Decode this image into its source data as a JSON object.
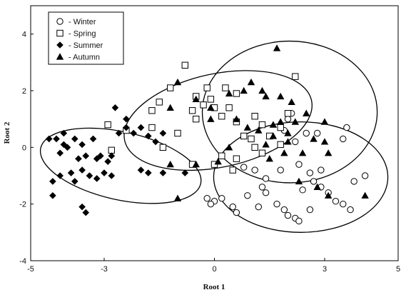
{
  "chart_data": {
    "type": "scatter",
    "xlabel": "Root 1",
    "ylabel": "Root 2",
    "xlim": [
      -5,
      5
    ],
    "ylim": [
      -4,
      5
    ],
    "xticks": [
      "-5",
      "-3",
      "0",
      "3",
      "5"
    ],
    "xtick_values": [
      -5,
      -3,
      0,
      3,
      5
    ],
    "yticks": [
      "4",
      "2",
      "0",
      "-2",
      "-4"
    ],
    "ytick_values": [
      4,
      2,
      0,
      -2,
      -4
    ],
    "grid": false,
    "legend_position": "top-left",
    "legend": [
      {
        "label": "- Winter",
        "marker": "circle"
      },
      {
        "label": "- Spring",
        "marker": "square"
      },
      {
        "label": "- Summer",
        "marker": "diamond"
      },
      {
        "label": "- Autumn",
        "marker": "triangle"
      }
    ],
    "series": [
      {
        "marker": "circle",
        "points": [
          [
            2.1,
            1.2
          ],
          [
            2.0,
            1.0
          ],
          [
            2.5,
            0.5
          ],
          [
            2.2,
            0.2
          ],
          [
            2.8,
            0.5
          ],
          [
            3.6,
            0.7
          ],
          [
            3.5,
            0.3
          ],
          [
            1.9,
            0.6
          ],
          [
            2.3,
            -0.6
          ],
          [
            0.8,
            -0.7
          ],
          [
            1.1,
            -0.8
          ],
          [
            1.4,
            -1.1
          ],
          [
            1.8,
            -0.8
          ],
          [
            2.6,
            -0.9
          ],
          [
            2.9,
            -0.8
          ],
          [
            2.7,
            -1.2
          ],
          [
            2.9,
            -1.4
          ],
          [
            3.1,
            -1.6
          ],
          [
            3.8,
            -1.2
          ],
          [
            4.1,
            -1.0
          ],
          [
            3.3,
            -1.9
          ],
          [
            3.5,
            -2.0
          ],
          [
            3.7,
            -2.2
          ],
          [
            0.2,
            -1.8
          ],
          [
            0.0,
            -1.9
          ],
          [
            0.5,
            -2.1
          ],
          [
            0.6,
            -2.3
          ],
          [
            1.4,
            -1.6
          ],
          [
            1.7,
            -2.0
          ],
          [
            1.9,
            -2.2
          ],
          [
            2.0,
            -2.4
          ],
          [
            2.2,
            -2.5
          ],
          [
            2.3,
            -2.6
          ],
          [
            1.3,
            -1.4
          ],
          [
            0.9,
            -1.7
          ],
          [
            2.4,
            -1.5
          ],
          [
            1.2,
            -2.1
          ],
          [
            -0.2,
            -1.8
          ],
          [
            -0.1,
            -2.0
          ],
          [
            2.6,
            -2.2
          ]
        ]
      },
      {
        "marker": "square",
        "points": [
          [
            -0.8,
            2.9
          ],
          [
            -1.2,
            2.1
          ],
          [
            -0.5,
            1.8
          ],
          [
            -0.3,
            1.5
          ],
          [
            0.0,
            1.4
          ],
          [
            0.3,
            2.1
          ],
          [
            0.6,
            1.9
          ],
          [
            -1.5,
            1.6
          ],
          [
            -1.7,
            1.3
          ],
          [
            -2.9,
            0.8
          ],
          [
            -1.7,
            0.7
          ],
          [
            -0.1,
            1.7
          ],
          [
            0.4,
            1.4
          ],
          [
            0.2,
            1.1
          ],
          [
            0.6,
            0.9
          ],
          [
            1.1,
            1.1
          ],
          [
            1.3,
            0.8
          ],
          [
            2.0,
            1.2
          ],
          [
            2.2,
            2.5
          ],
          [
            1.8,
            0.7
          ],
          [
            1.5,
            0.4
          ],
          [
            1.0,
            0.3
          ],
          [
            0.2,
            -0.3
          ],
          [
            0.0,
            -0.6
          ],
          [
            0.5,
            -0.8
          ],
          [
            0.6,
            -0.4
          ],
          [
            1.1,
            0.0
          ],
          [
            -1.4,
            0.0
          ],
          [
            -2.4,
            0.6
          ],
          [
            -1.0,
            0.5
          ],
          [
            -2.8,
            -0.1
          ],
          [
            -0.6,
            -0.6
          ],
          [
            1.8,
            0.1
          ],
          [
            -0.2,
            2.1
          ],
          [
            -0.6,
            1.3
          ],
          [
            0.8,
            0.4
          ],
          [
            1.3,
            -0.2
          ],
          [
            -0.5,
            1.0
          ]
        ]
      },
      {
        "marker": "diamond",
        "points": [
          [
            -4.5,
            0.3
          ],
          [
            -4.3,
            0.3
          ],
          [
            -4.1,
            0.5
          ],
          [
            -4.1,
            0.1
          ],
          [
            -4.0,
            0.0
          ],
          [
            -3.8,
            0.3
          ],
          [
            -4.2,
            -0.2
          ],
          [
            -3.6,
            0.1
          ],
          [
            -3.3,
            0.3
          ],
          [
            -3.5,
            -0.3
          ],
          [
            -3.2,
            -0.4
          ],
          [
            -4.2,
            -1.0
          ],
          [
            -4.4,
            -1.2
          ],
          [
            -3.9,
            -0.9
          ],
          [
            -3.6,
            -0.8
          ],
          [
            -3.8,
            -1.2
          ],
          [
            -3.4,
            -1.0
          ],
          [
            -3.2,
            -1.1
          ],
          [
            -3.0,
            -0.9
          ],
          [
            -2.9,
            -0.5
          ],
          [
            -3.1,
            -0.3
          ],
          [
            -2.8,
            -0.3
          ],
          [
            -2.6,
            0.5
          ],
          [
            -2.4,
            0.7
          ],
          [
            -2.2,
            0.5
          ],
          [
            -2.7,
            1.4
          ],
          [
            -2.4,
            1.0
          ],
          [
            -2.0,
            0.7
          ],
          [
            -1.8,
            0.4
          ],
          [
            -1.6,
            0.2
          ],
          [
            -1.4,
            0.5
          ],
          [
            -4.4,
            -1.7
          ],
          [
            -3.6,
            -2.1
          ],
          [
            -3.5,
            -2.3
          ],
          [
            -2.0,
            -0.8
          ],
          [
            -1.8,
            -0.9
          ],
          [
            -1.4,
            -0.9
          ],
          [
            -0.8,
            -0.9
          ],
          [
            -3.7,
            -0.4
          ],
          [
            -2.8,
            -1.0
          ]
        ]
      },
      {
        "marker": "triangle",
        "points": [
          [
            1.7,
            3.5
          ],
          [
            -1.0,
            2.3
          ],
          [
            -0.5,
            1.7
          ],
          [
            -0.1,
            1.4
          ],
          [
            0.4,
            1.9
          ],
          [
            0.8,
            2.0
          ],
          [
            1.0,
            2.3
          ],
          [
            1.3,
            2.0
          ],
          [
            1.4,
            1.8
          ],
          [
            1.8,
            1.8
          ],
          [
            2.1,
            1.6
          ],
          [
            -1.2,
            1.4
          ],
          [
            0.6,
            1.0
          ],
          [
            0.9,
            0.7
          ],
          [
            1.2,
            0.6
          ],
          [
            1.6,
            0.8
          ],
          [
            1.8,
            0.9
          ],
          [
            2.2,
            0.9
          ],
          [
            2.5,
            1.2
          ],
          [
            3.0,
            0.9
          ],
          [
            2.7,
            0.3
          ],
          [
            2.0,
            0.5
          ],
          [
            1.6,
            0.4
          ],
          [
            1.4,
            0.1
          ],
          [
            2.0,
            0.2
          ],
          [
            2.4,
            -0.2
          ],
          [
            3.0,
            0.2
          ],
          [
            3.1,
            -0.2
          ],
          [
            1.5,
            -0.4
          ],
          [
            0.4,
            0.0
          ],
          [
            0.1,
            -0.5
          ],
          [
            -0.5,
            -0.6
          ],
          [
            -1.2,
            -0.6
          ],
          [
            -1.0,
            -1.8
          ],
          [
            3.1,
            -1.7
          ],
          [
            4.1,
            -1.7
          ],
          [
            1.9,
            -0.2
          ],
          [
            -0.1,
            1.0
          ],
          [
            2.3,
            -1.2
          ],
          [
            2.8,
            -1.4
          ]
        ]
      }
    ],
    "ellipses": [
      {
        "cx": -2.55,
        "cy": -0.65,
        "rx": 2.23,
        "ry": 1.2,
        "angle_deg": -12.5
      },
      {
        "cx": 0.1,
        "cy": 0.95,
        "rx": 2.6,
        "ry": 1.65,
        "angle_deg": 12.0
      },
      {
        "cx": 2.05,
        "cy": 1.25,
        "rx": 2.38,
        "ry": 2.5,
        "angle_deg": 0
      },
      {
        "cx": 2.35,
        "cy": -1.05,
        "rx": 2.37,
        "ry": 1.95,
        "angle_deg": 0
      }
    ]
  }
}
